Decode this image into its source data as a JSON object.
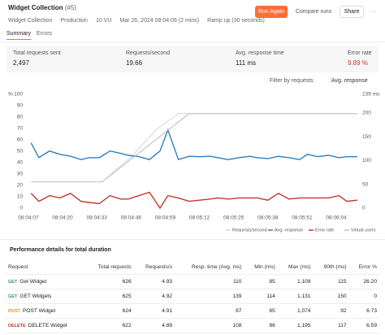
{
  "header": {
    "title": "Widget Collection",
    "run": "(#5)",
    "buttons": [
      "Run Again",
      "Compare runs",
      "Share"
    ],
    "meta": [
      "Widget Collection",
      "Production",
      "10 VU",
      "Mar 26, 2024 08:04:06 (2 mins)",
      "Ramp up (30 seconds)"
    ]
  },
  "tabs": [
    "Summary",
    "Errors"
  ],
  "stats": [
    {
      "label": "Total requests sent",
      "value": "2,497"
    },
    {
      "label": "Requests/second",
      "value": "19.66"
    },
    {
      "label": "Avg. response time",
      "value": "111 ms"
    },
    {
      "label": "Error rate",
      "value": "9.89 %"
    }
  ],
  "filters": [
    "Filter by requests",
    "Avg. response"
  ],
  "chart": {
    "type": "line",
    "y_unit": "%",
    "ylim": [
      0,
      100
    ],
    "yticks": [
      0,
      10,
      20,
      30,
      40,
      50,
      60,
      70,
      80,
      90,
      100
    ],
    "y2lim": [
      0,
      239
    ],
    "y2ticks": [
      0,
      50,
      100,
      150,
      200,
      {
        "value": 239,
        "label": "239 ms"
      }
    ],
    "xlim": [
      -3,
      126
    ],
    "xticks": [
      {
        "value": 1,
        "label": "08:04:07"
      },
      {
        "value": 14,
        "label": "08:04:20"
      },
      {
        "value": 27,
        "label": "08:04:33"
      },
      {
        "value": 40,
        "label": "08:04:46"
      },
      {
        "value": 53,
        "label": "08:04:59"
      },
      {
        "value": 66,
        "label": "08:05:12"
      },
      {
        "value": 79,
        "label": "08:05:25"
      },
      {
        "value": 92,
        "label": "08:05:38"
      },
      {
        "value": 105,
        "label": "08:05:51"
      },
      {
        "value": 118,
        "label": "08:06:04"
      }
    ],
    "series": [
      {
        "name": "Requests/second",
        "color": "#d6d6d6",
        "axis": "y",
        "x": [
          29,
          40,
          50,
          58,
          126
        ],
        "values": [
          23,
          45,
          70,
          83,
          83
        ]
      },
      {
        "name": "Avg. response",
        "color": "#2f7fc1",
        "axis": "y2",
        "x": [
          2,
          5,
          9,
          13,
          17,
          21,
          24,
          28,
          32,
          36,
          39,
          43,
          47,
          51,
          54,
          58,
          62,
          66,
          70,
          73,
          77,
          81,
          85,
          88,
          92,
          96,
          100,
          104,
          107,
          111,
          115,
          119,
          122,
          126
        ],
        "values": [
          137,
          106,
          120,
          113,
          109,
          102,
          106,
          106,
          120,
          115,
          111,
          108,
          102,
          120,
          164,
          102,
          109,
          108,
          109,
          106,
          102,
          106,
          109,
          106,
          104,
          109,
          106,
          102,
          113,
          108,
          111,
          106,
          108,
          108
        ]
      },
      {
        "name": "Error rate",
        "color": "#c0392b",
        "axis": "y",
        "x": [
          2,
          5,
          9,
          13,
          17,
          21,
          24,
          28,
          32,
          36,
          39,
          43,
          47,
          51,
          54,
          58,
          62,
          66,
          70,
          73,
          77,
          81,
          85,
          88,
          92,
          96,
          100,
          104,
          107,
          111,
          115,
          119,
          122,
          126
        ],
        "values": [
          13,
          6,
          11,
          9,
          13,
          6,
          5,
          4,
          11,
          8,
          8,
          11,
          14,
          0,
          11,
          9,
          6,
          7,
          8,
          9,
          8,
          9,
          9,
          9,
          7,
          13,
          8,
          9,
          9,
          9,
          9,
          11,
          6,
          7
        ]
      },
      {
        "name": "Virtual users",
        "color": "#bdbdbd",
        "axis": "y",
        "x": [
          2,
          29,
          62,
          126
        ],
        "values": [
          23,
          23,
          83,
          83
        ]
      }
    ]
  },
  "table": {
    "title": "Performance details for total duration",
    "columns": [
      "Request",
      "Total requests",
      "Requests/s",
      "Resp. time (Avg. ms)",
      "Min (ms)",
      "Max (ms)",
      "90th (ms)",
      "Error %"
    ],
    "rows": [
      {
        "method": "GET",
        "color": "#2e9f5a",
        "cells": [
          "Get Widget",
          "626",
          "4.93",
          "110",
          "85",
          "1,109",
          "115",
          "26.20"
        ]
      },
      {
        "method": "GET",
        "color": "#2e9f5a",
        "cells": [
          "GET Widgets",
          "625",
          "4.92",
          "139",
          "114",
          "1,131",
          "150",
          "0"
        ]
      },
      {
        "method": "POST",
        "color": "#e0a100",
        "cells": [
          "POST Widget",
          "624",
          "4.91",
          "87",
          "65",
          "1,074",
          "92",
          "6.73"
        ]
      },
      {
        "method": "DELETE",
        "color": "#c0392b",
        "cells": [
          "DELETE Widget",
          "622",
          "4.89",
          "108",
          "86",
          "1,195",
          "117",
          "6.59"
        ]
      }
    ]
  }
}
